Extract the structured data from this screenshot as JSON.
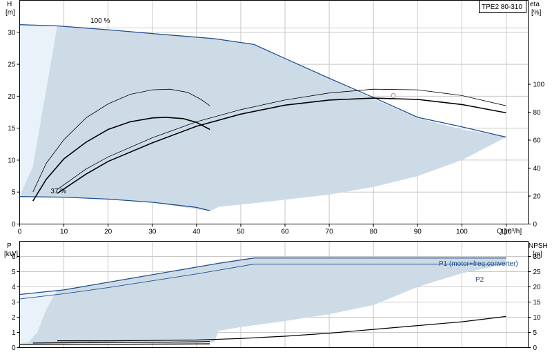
{
  "chart_data": [
    {
      "type": "line",
      "title": "TPE2 80-310",
      "xlabel": "Q [m³/h]",
      "ylabel": "H",
      "ylabel_unit": "[m]",
      "y2label": "eta",
      "y2label_unit": "[%]",
      "xlim": [
        0,
        115
      ],
      "ylim": [
        0,
        35
      ],
      "y2lim": [
        0,
        160
      ],
      "x_ticks": [
        0,
        10,
        20,
        30,
        40,
        50,
        60,
        70,
        80,
        90,
        100,
        110
      ],
      "y_ticks": [
        0,
        5,
        10,
        15,
        20,
        25,
        30
      ],
      "y2_ticks": [
        0,
        20,
        40,
        60,
        80,
        100
      ],
      "grid": true,
      "annotations": [
        {
          "text": "100 %",
          "x": 16,
          "y": 31.5
        },
        {
          "text": "37 %",
          "x": 7,
          "y": 4.8
        }
      ],
      "duty_point": {
        "x": 84.5,
        "y": 20.1
      },
      "operating_region": {
        "upper": [
          [
            0,
            31.2
          ],
          [
            8.5,
            31.0
          ],
          [
            20,
            30.3
          ],
          [
            30,
            29.8
          ],
          [
            44,
            29.0
          ],
          [
            53,
            28.1
          ],
          [
            60,
            25.8
          ],
          [
            70,
            22.7
          ],
          [
            80,
            19.6
          ],
          [
            90,
            16.6
          ],
          [
            100,
            14.8
          ],
          [
            110,
            13.7
          ]
        ],
        "lower": [
          [
            110,
            13.6
          ],
          [
            100,
            10.0
          ],
          [
            90,
            7.5
          ],
          [
            80,
            5.8
          ],
          [
            70,
            4.6
          ],
          [
            60,
            3.8
          ],
          [
            55,
            3.4
          ],
          [
            45,
            2.7
          ],
          [
            43,
            2.0
          ],
          [
            30,
            3.4
          ],
          [
            20,
            3.9
          ],
          [
            8.5,
            4.2
          ],
          [
            0,
            4.3
          ]
        ],
        "light_edge": [
          [
            0,
            31.2
          ],
          [
            8.5,
            31.0
          ],
          [
            7,
            25
          ],
          [
            5,
            17
          ],
          [
            3,
            9
          ],
          [
            0,
            4.3
          ]
        ]
      },
      "series": [
        {
          "name": "",
          "role": "head-max",
          "points": [
            [
              0,
              31.2
            ],
            [
              8.5,
              31.0
            ],
            [
              20,
              30.4
            ],
            [
              30,
              29.8
            ],
            [
              44,
              29.0
            ],
            [
              53,
              28.1
            ],
            [
              60,
              25.9
            ],
            [
              70,
              22.8
            ],
            [
              80,
              19.8
            ],
            [
              90,
              16.7
            ],
            [
              100,
              15.2
            ],
            [
              110,
              13.6
            ]
          ]
        },
        {
          "name": "",
          "role": "head-min",
          "points": [
            [
              0,
              4.3
            ],
            [
              10,
              4.2
            ],
            [
              20,
              3.9
            ],
            [
              30,
              3.4
            ],
            [
              40,
              2.6
            ],
            [
              43,
              2.1
            ]
          ]
        },
        {
          "name": "",
          "role": "eta-thin-small",
          "points": [
            [
              3,
              5.0
            ],
            [
              6,
              9.5
            ],
            [
              10,
              13.2
            ],
            [
              15,
              16.6
            ],
            [
              20,
              18.8
            ],
            [
              25,
              20.3
            ],
            [
              30,
              21.0
            ],
            [
              34,
              21.1
            ],
            [
              38,
              20.6
            ],
            [
              41,
              19.5
            ],
            [
              43,
              18.5
            ]
          ]
        },
        {
          "name": "",
          "role": "eta-thick-small",
          "points": [
            [
              3,
              3.6
            ],
            [
              6,
              7.0
            ],
            [
              10,
              10.2
            ],
            [
              15,
              12.8
            ],
            [
              20,
              14.8
            ],
            [
              25,
              16.0
            ],
            [
              30,
              16.6
            ],
            [
              33,
              16.7
            ],
            [
              37,
              16.5
            ],
            [
              40,
              15.9
            ],
            [
              43,
              14.8
            ]
          ]
        },
        {
          "name": "",
          "role": "eta-thin-large",
          "points": [
            [
              8.5,
              5.4
            ],
            [
              15,
              8.6
            ],
            [
              20,
              10.5
            ],
            [
              30,
              13.5
            ],
            [
              40,
              16.0
            ],
            [
              50,
              17.9
            ],
            [
              60,
              19.4
            ],
            [
              70,
              20.5
            ],
            [
              80,
              21.1
            ],
            [
              90,
              21.0
            ],
            [
              100,
              20.1
            ],
            [
              110,
              18.5
            ]
          ]
        },
        {
          "name": "",
          "role": "eta-thick-large",
          "points": [
            [
              8.5,
              4.8
            ],
            [
              15,
              7.8
            ],
            [
              20,
              9.8
            ],
            [
              30,
              12.7
            ],
            [
              40,
              15.3
            ],
            [
              50,
              17.2
            ],
            [
              60,
              18.6
            ],
            [
              70,
              19.4
            ],
            [
              80,
              19.7
            ],
            [
              90,
              19.5
            ],
            [
              100,
              18.7
            ],
            [
              110,
              17.4
            ]
          ]
        }
      ]
    },
    {
      "type": "line",
      "xlabel": "",
      "ylabel": "P",
      "ylabel_unit": "[kW]",
      "y2label": "NPSH",
      "y2label_unit": "[m]",
      "xlim": [
        0,
        115
      ],
      "ylim": [
        0,
        7
      ],
      "y2lim": [
        0,
        35
      ],
      "y_ticks": [
        0,
        1,
        2,
        3,
        4,
        5,
        6
      ],
      "y2_ticks": [
        0,
        5,
        10,
        15,
        20,
        25,
        30
      ],
      "grid": true,
      "operating_region": {
        "upper": [
          [
            0,
            3.5
          ],
          [
            10,
            3.8
          ],
          [
            20,
            4.3
          ],
          [
            30,
            4.8
          ],
          [
            40,
            5.3
          ],
          [
            45,
            5.55
          ],
          [
            53,
            5.9
          ],
          [
            60,
            5.9
          ],
          [
            70,
            5.9
          ],
          [
            80,
            5.9
          ],
          [
            90,
            5.9
          ],
          [
            100,
            5.9
          ],
          [
            110,
            5.9
          ]
        ],
        "lower": [
          [
            110,
            5.5
          ],
          [
            100,
            4.9
          ],
          [
            90,
            4.0
          ],
          [
            85,
            3.4
          ],
          [
            80,
            2.8
          ],
          [
            70,
            2.2
          ],
          [
            60,
            1.75
          ],
          [
            50,
            1.35
          ],
          [
            45,
            1.1
          ],
          [
            44,
            0.35
          ],
          [
            30,
            0.3
          ],
          [
            10,
            0.25
          ],
          [
            0,
            0.25
          ]
        ],
        "light_edge": [
          [
            0,
            3.5
          ],
          [
            8.5,
            3.8
          ],
          [
            6,
            2.5
          ],
          [
            4,
            1.0
          ],
          [
            2,
            0.35
          ],
          [
            0,
            0.25
          ]
        ]
      },
      "series": [
        {
          "name": "P1 (motor+freq.converter)",
          "points": [
            [
              0,
              3.5
            ],
            [
              10,
              3.8
            ],
            [
              20,
              4.3
            ],
            [
              30,
              4.8
            ],
            [
              40,
              5.3
            ],
            [
              45,
              5.55
            ],
            [
              53,
              5.9
            ],
            [
              60,
              5.9
            ],
            [
              80,
              5.9
            ],
            [
              100,
              5.9
            ],
            [
              110,
              5.9
            ]
          ]
        },
        {
          "name": "P2",
          "points": [
            [
              0,
              3.2
            ],
            [
              10,
              3.55
            ],
            [
              20,
              3.95
            ],
            [
              30,
              4.4
            ],
            [
              40,
              4.85
            ],
            [
              45,
              5.1
            ],
            [
              53,
              5.5
            ],
            [
              60,
              5.5
            ],
            [
              80,
              5.5
            ],
            [
              100,
              5.5
            ],
            [
              110,
              5.5
            ]
          ]
        },
        {
          "name": "",
          "role": "npsh-large",
          "points": [
            [
              8.5,
              0.45
            ],
            [
              20,
              0.45
            ],
            [
              30,
              0.47
            ],
            [
              40,
              0.5
            ],
            [
              50,
              0.6
            ],
            [
              60,
              0.75
            ],
            [
              70,
              0.95
            ],
            [
              80,
              1.2
            ],
            [
              90,
              1.45
            ],
            [
              100,
              1.7
            ],
            [
              110,
              2.05
            ]
          ]
        },
        {
          "name": "",
          "role": "npsh-small",
          "points": [
            [
              3,
              0.3
            ],
            [
              10,
              0.32
            ],
            [
              20,
              0.33
            ],
            [
              30,
              0.35
            ],
            [
              40,
              0.38
            ],
            [
              43,
              0.4
            ]
          ]
        },
        {
          "name": "",
          "role": "npsh-base",
          "points": [
            [
              0,
              0.2
            ],
            [
              20,
              0.22
            ],
            [
              43,
              0.25
            ]
          ]
        }
      ]
    }
  ],
  "colors": {
    "region_dark": "#cddbe7",
    "region_light": "#e9f1f9",
    "curve_blue": "#1f4e8c",
    "grid": "#c8c8c8",
    "duty_point": "#e88080"
  }
}
